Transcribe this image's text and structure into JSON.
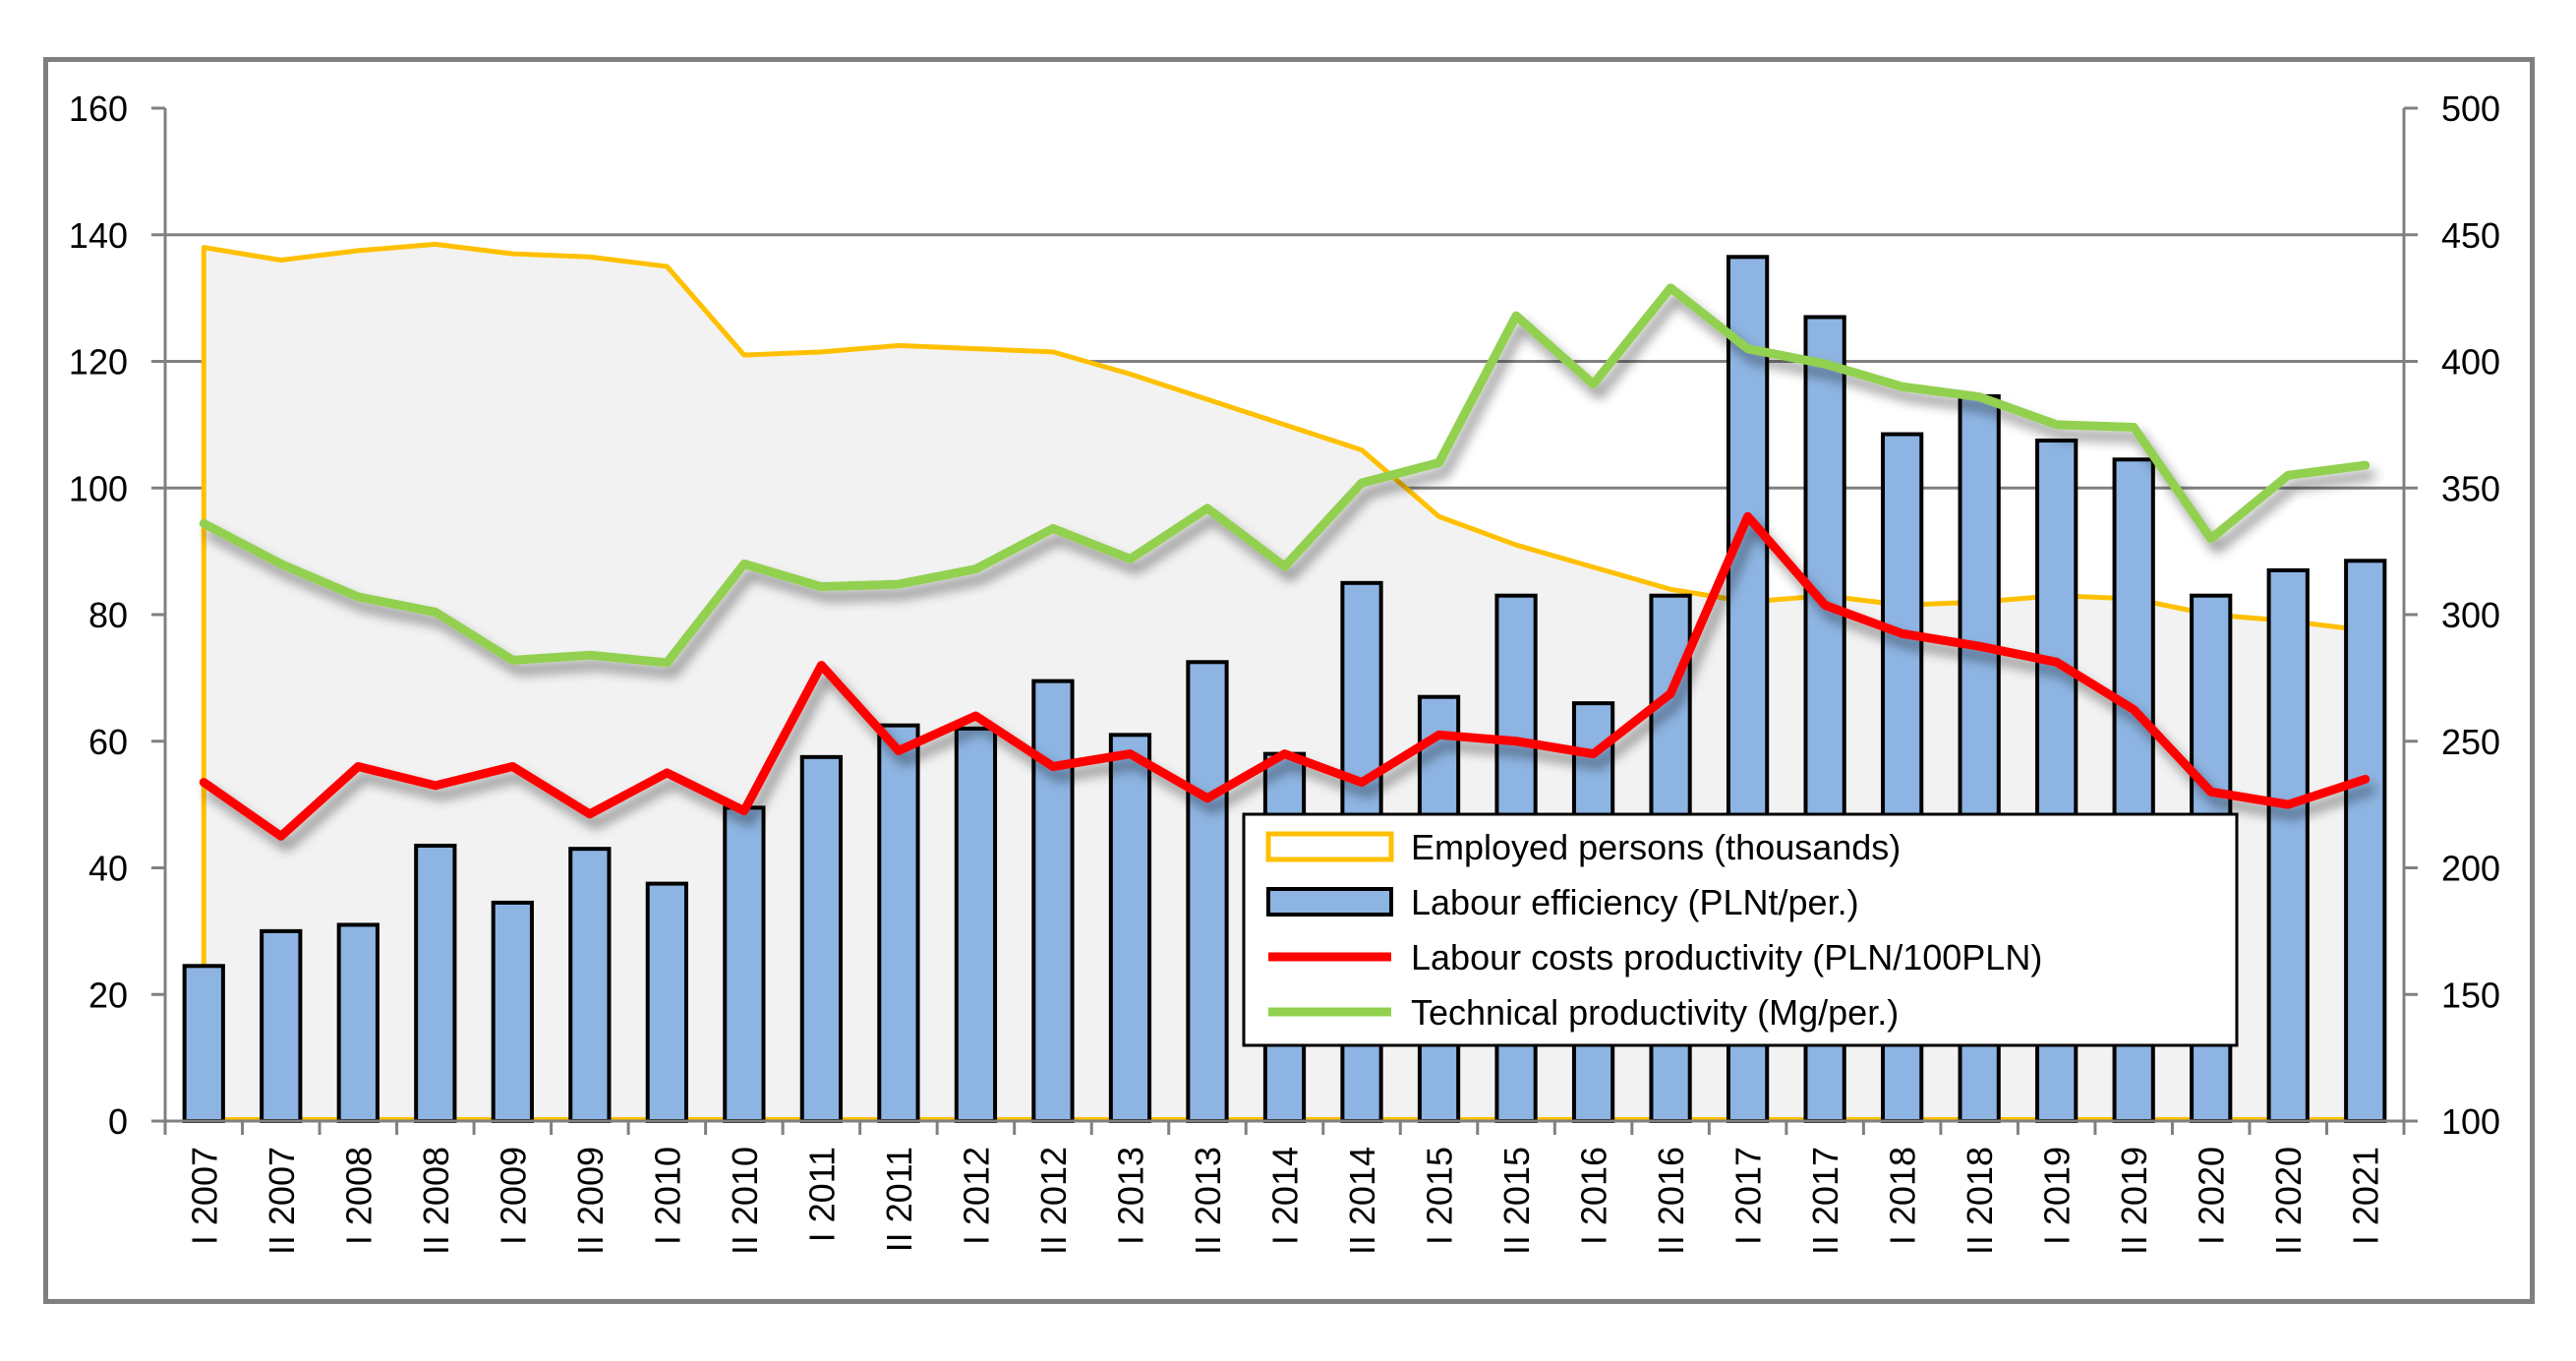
{
  "chart_data": {
    "type": "bar",
    "categories": [
      "I 2007",
      "II 2007",
      "I 2008",
      "II 2008",
      "I 2009",
      "II 2009",
      "I 2010",
      "II 2010",
      "I 2011",
      "II 2011",
      "I 2012",
      "II 2012",
      "I 2013",
      "II 2013",
      "I 2014",
      "II 2014",
      "I 2015",
      "II 2015",
      "I 2016",
      "II 2016",
      "I 2017",
      "II 2017",
      "I 2018",
      "II 2018",
      "I 2019",
      "II 2019",
      "I 2020",
      "II 2020",
      "I 2021"
    ],
    "y_left": {
      "min": 0,
      "max": 160,
      "ticks": [
        "0",
        "20",
        "40",
        "60",
        "80",
        "100",
        "120",
        "140",
        "160"
      ]
    },
    "y_right": {
      "min": 100,
      "max": 500,
      "ticks": [
        "100",
        "150",
        "200",
        "250",
        "300",
        "350",
        "400",
        "450",
        "500"
      ]
    },
    "gridlines": [
      100,
      120,
      140
    ],
    "series": [
      {
        "name": "Employed persons (thousands)",
        "type": "area-line",
        "axis": "left",
        "color": "#FFC000",
        "values": [
          138,
          136,
          137.5,
          138.5,
          137,
          136.5,
          135,
          121,
          121.5,
          122.5,
          122,
          121.5,
          118,
          114,
          110,
          106,
          95.5,
          91,
          87.5,
          84,
          82,
          83,
          81.5,
          82,
          83,
          82.5,
          80,
          79,
          77.5
        ]
      },
      {
        "name": "Labour efficiency (PLNt/per.)",
        "type": "bar",
        "axis": "left",
        "color": "#8DB4E2",
        "values": [
          24.5,
          30,
          31,
          43.5,
          34.5,
          43,
          37.5,
          49.5,
          57.5,
          62.5,
          62,
          69.5,
          61,
          72.5,
          58,
          85,
          67,
          83,
          66,
          83,
          136.5,
          127,
          108.5,
          114.5,
          107.5,
          104.5,
          83,
          87,
          88.5
        ]
      },
      {
        "name": "Labour costs productivity (PLN/100PLN)",
        "type": "line",
        "axis": "left",
        "color": "#FF0000",
        "values": [
          53.5,
          45,
          56,
          53,
          56,
          48.5,
          55,
          49,
          72,
          58.5,
          64,
          56,
          58,
          51,
          58,
          53.5,
          61,
          60,
          58,
          67.5,
          95.5,
          81.5,
          77,
          75,
          72.5,
          65,
          52,
          50,
          54
        ]
      },
      {
        "name": "Technical productivity (Mg/per.)",
        "type": "line",
        "axis": "right",
        "color": "#92D050",
        "values": [
          336,
          320,
          307,
          301,
          282,
          284,
          281,
          320,
          311,
          312,
          318,
          334,
          322,
          342,
          319,
          352,
          360,
          418,
          391,
          429,
          405,
          399,
          390,
          386,
          375,
          374,
          330,
          355,
          359
        ]
      }
    ],
    "legend": {
      "position": "center-right",
      "entries": [
        "Employed persons (thousands)",
        "Labour efficiency (PLNt/per.)",
        "Labour costs productivity (PLN/100PLN)",
        "Technical productivity (Mg/per.)"
      ]
    }
  }
}
